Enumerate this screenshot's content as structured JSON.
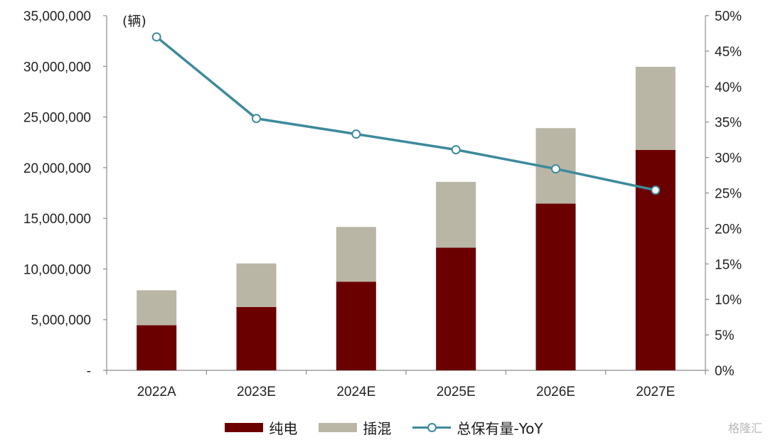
{
  "chart_data": {
    "type": "bar",
    "stacked": true,
    "categories": [
      "2022A",
      "2023E",
      "2024E",
      "2025E",
      "2026E",
      "2027E"
    ],
    "series": [
      {
        "name": "纯电",
        "type": "bar",
        "axis": "left",
        "color": "#6b0000",
        "values": [
          4450000,
          6250000,
          8750000,
          12100000,
          16450000,
          21750000
        ]
      },
      {
        "name": "插混",
        "type": "bar",
        "axis": "left",
        "color": "#b9b6a6",
        "values": [
          3450000,
          4300000,
          5400000,
          6500000,
          7450000,
          8200000
        ]
      },
      {
        "name": "总保有量-YoY",
        "type": "line",
        "axis": "right",
        "color": "#3d8a9c",
        "values": [
          0.47,
          0.355,
          0.333,
          0.311,
          0.284,
          0.254
        ]
      }
    ],
    "y_left": {
      "unit_label": "(辆)",
      "ylim": [
        0,
        35000000
      ],
      "ticks": [
        0,
        5000000,
        10000000,
        15000000,
        20000000,
        25000000,
        30000000,
        35000000
      ],
      "tick_labels": [
        "-",
        "5,000,000",
        "10,000,000",
        "15,000,000",
        "20,000,000",
        "25,000,000",
        "30,000,000",
        "35,000,000"
      ]
    },
    "y_right": {
      "ylim": [
        0,
        0.5
      ],
      "ticks": [
        0,
        0.05,
        0.1,
        0.15,
        0.2,
        0.25,
        0.3,
        0.35,
        0.4,
        0.45,
        0.5
      ],
      "tick_labels": [
        "0%",
        "5%",
        "10%",
        "15%",
        "20%",
        "25%",
        "30%",
        "35%",
        "40%",
        "45%",
        "50%"
      ]
    },
    "grid": false,
    "legend_position": "bottom"
  },
  "legend": {
    "items": [
      {
        "label": "纯电",
        "color": "#6b0000"
      },
      {
        "label": "插混",
        "color": "#b9b6a6"
      },
      {
        "label": "总保有量-YoY",
        "color": "#3d8a9c"
      }
    ]
  },
  "watermark": "格隆汇"
}
